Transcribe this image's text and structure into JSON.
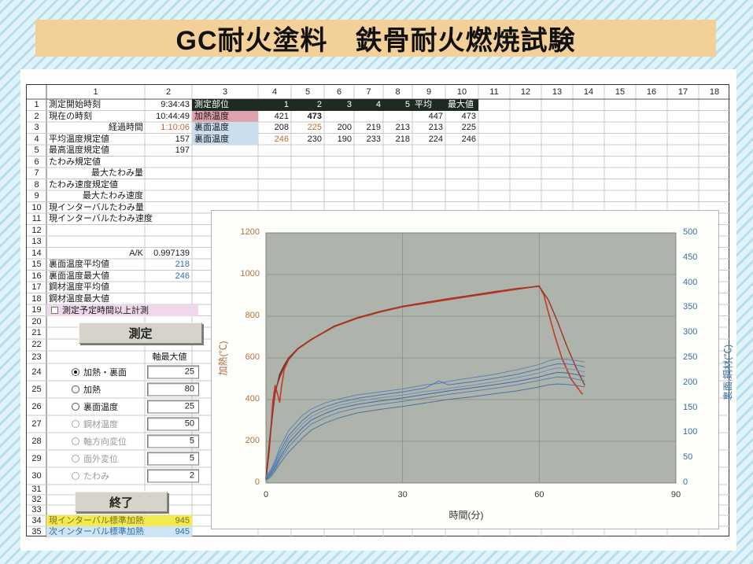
{
  "title_banner": {
    "text": "GC耐火塗料　鉄骨耐火燃焼試験"
  },
  "controls": {
    "measure_button": "測定",
    "end_button": "終了"
  },
  "sheet": {
    "col_headers": [
      "1",
      "2",
      "3",
      "4",
      "5",
      "6",
      "7",
      "8",
      "9",
      "10",
      "11",
      "12",
      "13",
      "14",
      "15",
      "16",
      "17",
      "18"
    ],
    "rows": [
      {
        "n": "1",
        "cells": [
          {
            "c": 1,
            "t": "測定開始時刻"
          },
          {
            "c": 2,
            "t": "9:34:43",
            "cls": "num"
          },
          {
            "c": 3,
            "t": "測定部位",
            "cls": "dark"
          },
          {
            "c": 4,
            "t": "1",
            "cls": "dark num"
          },
          {
            "c": 5,
            "t": "2",
            "cls": "dark num"
          },
          {
            "c": 6,
            "t": "3",
            "cls": "dark num"
          },
          {
            "c": 7,
            "t": "4",
            "cls": "dark num"
          },
          {
            "c": 8,
            "t": "5",
            "cls": "dark num"
          },
          {
            "c": 9,
            "t": "平均",
            "cls": "dark"
          },
          {
            "c": 10,
            "t": "最大値",
            "cls": "dark"
          }
        ]
      },
      {
        "n": "2",
        "cells": [
          {
            "c": 1,
            "t": "現在の時刻"
          },
          {
            "c": 2,
            "t": "10:44:49",
            "cls": "num"
          },
          {
            "c": 3,
            "t": "加熱温度",
            "cls": "pink"
          },
          {
            "c": 4,
            "t": "421",
            "cls": "num"
          },
          {
            "c": 5,
            "t": "473",
            "cls": "num bold"
          },
          {
            "c": 9,
            "t": "447",
            "cls": "num"
          },
          {
            "c": 10,
            "t": "473",
            "cls": "num"
          }
        ]
      },
      {
        "n": "3",
        "cells": [
          {
            "c": 1,
            "t": "経過時間",
            "cls": "right"
          },
          {
            "c": 2,
            "t": "1:10:06",
            "cls": "num orange"
          },
          {
            "c": 3,
            "t": "裏面温度",
            "cls": "lblue"
          },
          {
            "c": 4,
            "t": "208",
            "cls": "num"
          },
          {
            "c": 5,
            "t": "225",
            "cls": "num orange"
          },
          {
            "c": 6,
            "t": "200",
            "cls": "num"
          },
          {
            "c": 7,
            "t": "219",
            "cls": "num"
          },
          {
            "c": 8,
            "t": "213",
            "cls": "num"
          },
          {
            "c": 9,
            "t": "213",
            "cls": "num"
          },
          {
            "c": 10,
            "t": "225",
            "cls": "num"
          }
        ]
      },
      {
        "n": "4",
        "cells": [
          {
            "c": 1,
            "t": "平均温度規定値"
          },
          {
            "c": 2,
            "t": "157",
            "cls": "num"
          },
          {
            "c": 3,
            "t": "裏面温度",
            "cls": "lblue"
          },
          {
            "c": 4,
            "t": "246",
            "cls": "num orange"
          },
          {
            "c": 5,
            "t": "230",
            "cls": "num"
          },
          {
            "c": 6,
            "t": "190",
            "cls": "num"
          },
          {
            "c": 7,
            "t": "233",
            "cls": "num"
          },
          {
            "c": 8,
            "t": "218",
            "cls": "num"
          },
          {
            "c": 9,
            "t": "224",
            "cls": "num"
          },
          {
            "c": 10,
            "t": "246",
            "cls": "num"
          }
        ]
      },
      {
        "n": "5",
        "cells": [
          {
            "c": 1,
            "t": "最高温度規定値"
          },
          {
            "c": 2,
            "t": "197",
            "cls": "num"
          }
        ]
      },
      {
        "n": "6",
        "cells": [
          {
            "c": 1,
            "t": "たわみ規定値"
          }
        ]
      },
      {
        "n": "7",
        "cells": [
          {
            "c": 1,
            "t": "最大たわみ量",
            "cls": "right"
          }
        ]
      },
      {
        "n": "8",
        "cells": [
          {
            "c": 1,
            "t": "たわみ速度規定値"
          }
        ]
      },
      {
        "n": "9",
        "cells": [
          {
            "c": 1,
            "t": "最大たわみ速度",
            "cls": "right"
          }
        ]
      },
      {
        "n": "10",
        "cells": [
          {
            "c": 1,
            "t": "現インターバルたわみ量"
          }
        ]
      },
      {
        "n": "11",
        "cells": [
          {
            "c": 1,
            "t": "現インターバルたわみ速度"
          }
        ]
      },
      {
        "n": "12",
        "cells": []
      },
      {
        "n": "13",
        "cells": []
      },
      {
        "n": "14",
        "cells": [
          {
            "c": 1,
            "t": "A/K",
            "cls": "right"
          },
          {
            "c": 2,
            "t": "0.997139",
            "cls": "num"
          }
        ]
      },
      {
        "n": "15",
        "cells": [
          {
            "c": 1,
            "t": "裏面温度平均値"
          },
          {
            "c": 2,
            "t": "218",
            "cls": "num blue"
          }
        ]
      },
      {
        "n": "16",
        "cells": [
          {
            "c": 1,
            "t": "裏面温度最大値"
          },
          {
            "c": 2,
            "t": "246",
            "cls": "num blue"
          }
        ]
      },
      {
        "n": "17",
        "cells": [
          {
            "c": 1,
            "t": "鋼材温度平均値"
          }
        ]
      },
      {
        "n": "18",
        "cells": [
          {
            "c": 1,
            "t": "鋼材温度最大値"
          }
        ]
      },
      {
        "n": "19",
        "cells": [
          {
            "c": 1,
            "span": 2,
            "type": "checkbox",
            "t": "測定予定時間以上計測"
          }
        ]
      },
      {
        "n": "20",
        "cells": []
      },
      {
        "n": "21",
        "cells": []
      },
      {
        "n": "22",
        "cells": []
      },
      {
        "n": "23",
        "cells": [
          {
            "c": 2,
            "t": "軸最大値",
            "cls": "center"
          }
        ]
      },
      {
        "n": "24",
        "cells": [
          {
            "c": 1,
            "type": "radio",
            "t": "加熱・裏面",
            "selected": true,
            "enabled": true
          },
          {
            "c": 2,
            "type": "valuebox",
            "t": "25"
          }
        ]
      },
      {
        "n": "25",
        "cells": [
          {
            "c": 1,
            "type": "radio",
            "t": "加熱",
            "selected": false,
            "enabled": true
          },
          {
            "c": 2,
            "type": "valuebox",
            "t": "80"
          }
        ]
      },
      {
        "n": "26",
        "cells": [
          {
            "c": 1,
            "type": "radio",
            "t": "裏面温度",
            "selected": false,
            "enabled": true
          },
          {
            "c": 2,
            "type": "valuebox",
            "t": "25"
          }
        ]
      },
      {
        "n": "27",
        "cells": [
          {
            "c": 1,
            "type": "radio",
            "t": "鋼材温度",
            "selected": false,
            "enabled": false
          },
          {
            "c": 2,
            "type": "valuebox",
            "t": "50"
          }
        ]
      },
      {
        "n": "28",
        "cells": [
          {
            "c": 1,
            "type": "radio",
            "t": "軸方向変位",
            "selected": false,
            "enabled": false
          },
          {
            "c": 2,
            "type": "valuebox",
            "t": "5"
          }
        ]
      },
      {
        "n": "29",
        "cells": [
          {
            "c": 1,
            "type": "radio",
            "t": "面外変位",
            "selected": false,
            "enabled": false
          },
          {
            "c": 2,
            "type": "valuebox",
            "t": "5"
          }
        ]
      },
      {
        "n": "30",
        "cells": [
          {
            "c": 1,
            "type": "radio",
            "t": "たわみ",
            "selected": false,
            "enabled": false
          },
          {
            "c": 2,
            "type": "valuebox",
            "t": "2"
          }
        ]
      },
      {
        "n": "31",
        "cells": []
      },
      {
        "n": "32",
        "cells": []
      },
      {
        "n": "33",
        "cells": []
      },
      {
        "n": "34",
        "cells": [
          {
            "c": 1,
            "t": "現インターバル標準加熱温度",
            "cls": "hl-yellow"
          },
          {
            "c": 2,
            "t": "945",
            "cls": "hl-yellow num"
          }
        ]
      },
      {
        "n": "35",
        "cells": [
          {
            "c": 1,
            "t": "次インターバル標準加熱温度",
            "cls": "hl-blue"
          },
          {
            "c": 2,
            "t": "945",
            "cls": "hl-blue num"
          }
        ]
      }
    ]
  },
  "chart_data": {
    "type": "line",
    "title": "",
    "xlabel": "時間(分)",
    "ylabel_left": "加熱(℃)",
    "ylabel_right": "裏面,鋼材(℃)",
    "xlim": [
      0,
      90
    ],
    "x_ticks": [
      0,
      30,
      60,
      90
    ],
    "ylim_left": [
      0,
      1200
    ],
    "yticks_left": [
      0,
      200,
      400,
      600,
      800,
      1000,
      1200
    ],
    "ylim_right": [
      0,
      500
    ],
    "yticks_right": [
      0,
      50,
      100,
      150,
      200,
      250,
      300,
      350,
      400,
      450,
      500
    ],
    "grid": true,
    "plot_bg": "#aeb4ac",
    "grid_color": "#878d85",
    "series": [
      {
        "name": "standard-heating-curve",
        "axis": "left",
        "color": "#53301f",
        "width": 1.4,
        "x": [
          0,
          1,
          2,
          3,
          4,
          5,
          7,
          10,
          15,
          20,
          25,
          30,
          35,
          40,
          45,
          50,
          55,
          60
        ],
        "values": [
          20,
          250,
          430,
          520,
          565,
          600,
          645,
          690,
          750,
          790,
          820,
          845,
          863,
          880,
          897,
          913,
          930,
          945
        ]
      },
      {
        "name": "heating-temp-1",
        "axis": "left",
        "color": "#c13b28",
        "width": 1.6,
        "x": [
          0,
          0.7,
          1.5,
          2,
          2.5,
          3,
          3.4,
          4,
          5,
          7,
          10,
          15,
          20,
          25,
          30,
          35,
          40,
          45,
          50,
          55,
          60,
          61,
          62,
          63.5,
          65,
          67,
          69.5
        ],
        "values": [
          20,
          150,
          390,
          468,
          430,
          388,
          460,
          545,
          592,
          643,
          688,
          750,
          790,
          820,
          845,
          862,
          879,
          896,
          912,
          929,
          945,
          903,
          818,
          700,
          598,
          498,
          425
        ]
      },
      {
        "name": "heating-temp-2",
        "axis": "left",
        "color": "#9e3224",
        "width": 1.4,
        "x": [
          0,
          1,
          2,
          3,
          4,
          5,
          7,
          10,
          15,
          20,
          25,
          30,
          35,
          40,
          45,
          50,
          55,
          60,
          62,
          64,
          66,
          68,
          70
        ],
        "values": [
          15,
          235,
          442,
          505,
          558,
          597,
          643,
          690,
          753,
          793,
          823,
          848,
          866,
          884,
          900,
          917,
          933,
          943,
          878,
          775,
          660,
          558,
          468
        ]
      },
      {
        "name": "back-surface-1",
        "axis": "right",
        "color": "#5a84b8",
        "width": 1,
        "x": [
          0,
          1,
          2,
          3,
          5,
          8,
          10,
          13,
          16,
          20,
          25,
          30,
          35,
          38,
          40,
          45,
          50,
          55,
          60,
          62,
          64,
          66,
          68,
          70
        ],
        "values": [
          15,
          25,
          45,
          70,
          105,
          135,
          148,
          160,
          168,
          176,
          182,
          188,
          196,
          199,
          203,
          210,
          217,
          226,
          237,
          244,
          248,
          247,
          245,
          242
        ]
      },
      {
        "name": "back-surface-2",
        "axis": "right",
        "color": "#4a77ad",
        "width": 1,
        "x": [
          0,
          1,
          2,
          3,
          5,
          8,
          10,
          13,
          16,
          20,
          25,
          30,
          35,
          38,
          40,
          45,
          50,
          55,
          60,
          62,
          64,
          66,
          68,
          70
        ],
        "values": [
          12,
          22,
          40,
          62,
          95,
          125,
          140,
          152,
          161,
          169,
          176,
          182,
          190,
          204,
          196,
          202,
          209,
          217,
          228,
          234,
          238,
          238,
          236,
          232
        ]
      },
      {
        "name": "back-surface-3",
        "axis": "right",
        "color": "#6990bf",
        "width": 1,
        "x": [
          0,
          1,
          2,
          3,
          5,
          8,
          10,
          13,
          16,
          20,
          25,
          30,
          35,
          38,
          40,
          45,
          50,
          55,
          60,
          62,
          64,
          66,
          68,
          70
        ],
        "values": [
          10,
          20,
          36,
          56,
          88,
          118,
          133,
          146,
          155,
          163,
          170,
          176,
          183,
          186,
          189,
          195,
          202,
          210,
          220,
          226,
          230,
          229,
          226,
          222
        ]
      },
      {
        "name": "back-surface-4",
        "axis": "right",
        "color": "#40699f",
        "width": 1,
        "x": [
          0,
          1,
          2,
          3,
          5,
          8,
          10,
          13,
          16,
          20,
          25,
          30,
          35,
          38,
          40,
          45,
          50,
          55,
          60,
          62,
          64,
          66,
          68,
          70
        ],
        "values": [
          8,
          18,
          32,
          50,
          80,
          110,
          126,
          139,
          149,
          157,
          164,
          170,
          177,
          181,
          184,
          190,
          196,
          203,
          212,
          217,
          221,
          220,
          217,
          213
        ]
      },
      {
        "name": "back-surface-5",
        "axis": "right",
        "color": "#5580b2",
        "width": 1,
        "x": [
          0,
          1,
          2,
          3,
          5,
          8,
          10,
          13,
          16,
          20,
          25,
          30,
          35,
          38,
          40,
          45,
          50,
          55,
          60,
          62,
          64,
          66,
          68,
          70
        ],
        "values": [
          6,
          15,
          28,
          45,
          72,
          102,
          118,
          131,
          141,
          150,
          157,
          163,
          170,
          174,
          177,
          183,
          189,
          196,
          205,
          209,
          212,
          211,
          208,
          204
        ]
      },
      {
        "name": "back-surface-6",
        "axis": "right",
        "color": "#4d72a3",
        "width": 1,
        "x": [
          0,
          1,
          2,
          3,
          5,
          8,
          10,
          13,
          16,
          20,
          25,
          30,
          35,
          38,
          40,
          45,
          50,
          55,
          60,
          62,
          64,
          66,
          68,
          70
        ],
        "values": [
          5,
          12,
          24,
          38,
          62,
          90,
          106,
          120,
          130,
          140,
          147,
          153,
          160,
          164,
          167,
          172,
          178,
          184,
          192,
          196,
          198,
          197,
          195,
          192
        ]
      }
    ]
  }
}
